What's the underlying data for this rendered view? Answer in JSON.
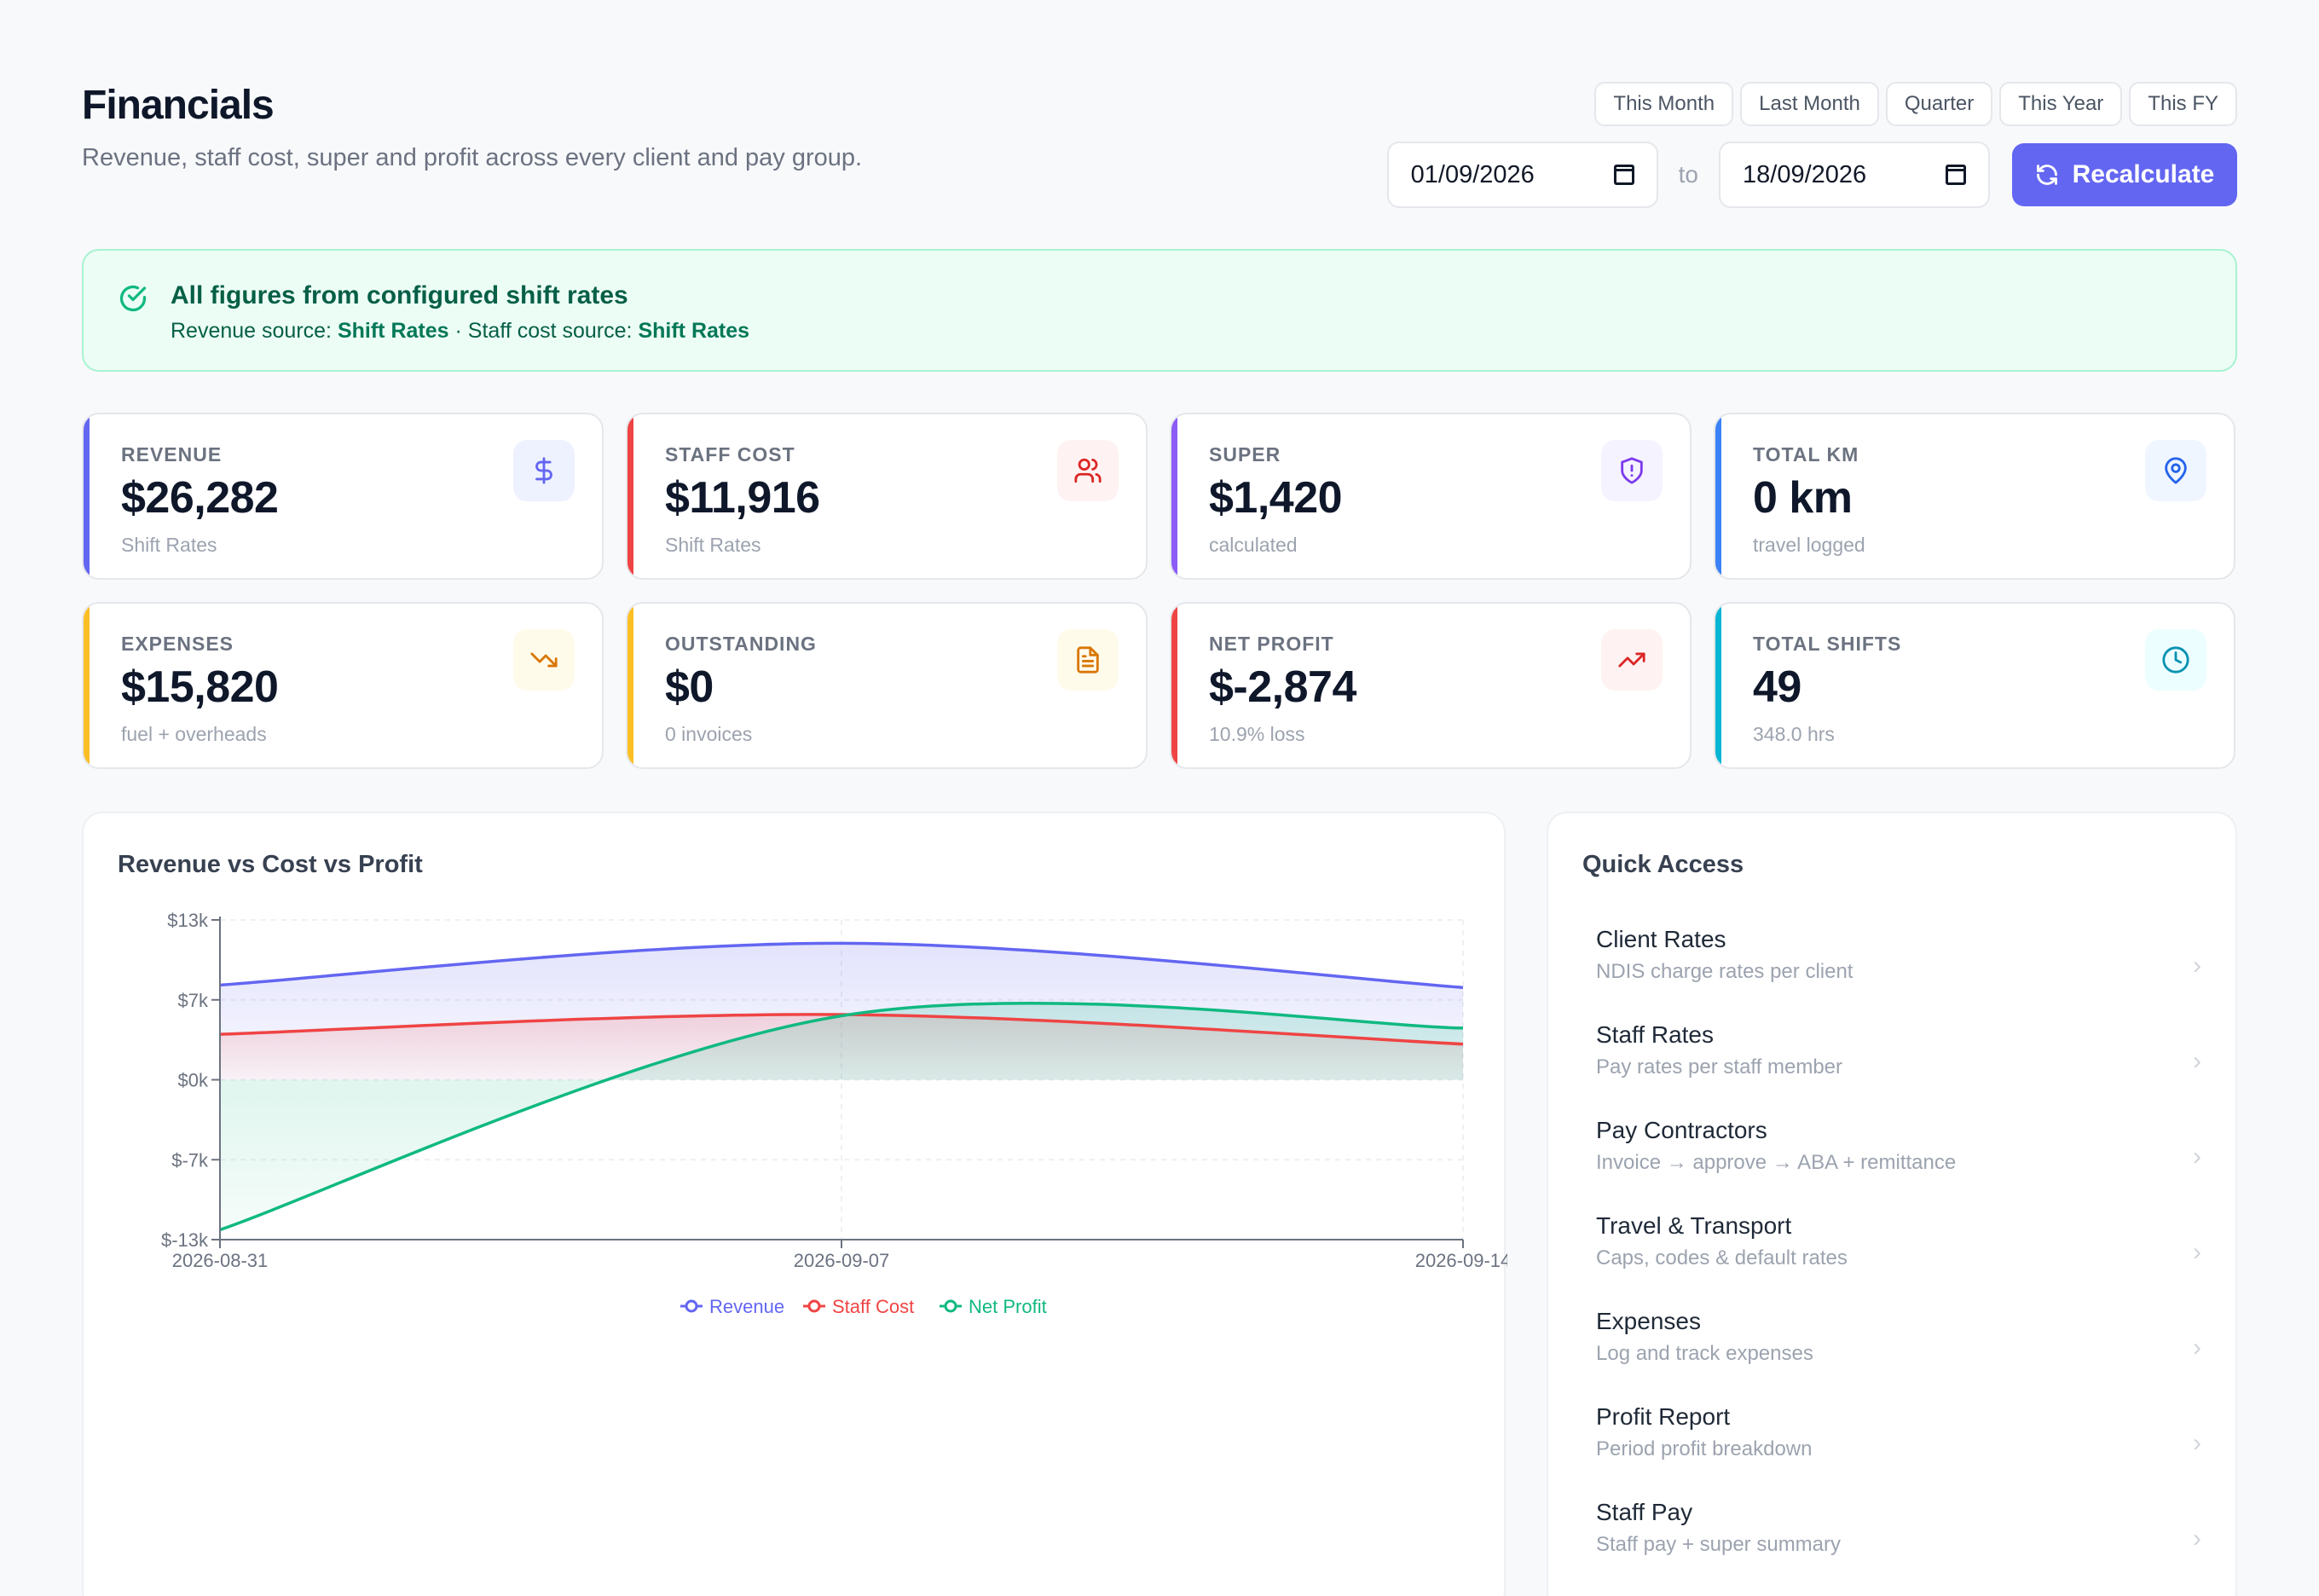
{
  "header": {
    "title": "Financials",
    "subtitle": "Revenue, staff cost, super and profit across every client and pay group."
  },
  "presets": [
    "This Month",
    "Last Month",
    "Quarter",
    "This Year",
    "This FY"
  ],
  "date_range": {
    "from": "01/09/2026",
    "to_label": "to",
    "to": "18/09/2026"
  },
  "recalculate_label": "Recalculate",
  "banner": {
    "title": "All figures from configured shift rates",
    "revenue_label": "Revenue source:",
    "revenue_source": "Shift Rates",
    "separator": "·",
    "cost_label": "Staff cost source:",
    "cost_source": "Shift Rates"
  },
  "stats": [
    {
      "label": "REVENUE",
      "value": "$26,282",
      "sub": "Shift Rates",
      "accent": "#6366f1",
      "icon": "dollar-icon",
      "icon_bg": "#eef2ff",
      "icon_color": "#6366f1"
    },
    {
      "label": "STAFF COST",
      "value": "$11,916",
      "sub": "Shift Rates",
      "accent": "#ef4444",
      "icon": "users-icon",
      "icon_bg": "#fef2f2",
      "icon_color": "#dc2626"
    },
    {
      "label": "SUPER",
      "value": "$1,420",
      "sub": "calculated",
      "accent": "#8b5cf6",
      "icon": "shield-icon",
      "icon_bg": "#f5f3ff",
      "icon_color": "#7c3aed"
    },
    {
      "label": "TOTAL KM",
      "value": "0 km",
      "sub": "travel logged",
      "accent": "#3b82f6",
      "icon": "map-pin-icon",
      "icon_bg": "#eff6ff",
      "icon_color": "#2563eb"
    },
    {
      "label": "EXPENSES",
      "value": "$15,820",
      "sub": "fuel + overheads",
      "accent": "#fbbf24",
      "icon": "trending-down-icon",
      "icon_bg": "#fffbeb",
      "icon_color": "#d97706"
    },
    {
      "label": "OUTSTANDING",
      "value": "$0",
      "sub": "0 invoices",
      "accent": "#fbbf24",
      "icon": "file-icon",
      "icon_bg": "#fffbeb",
      "icon_color": "#d97706"
    },
    {
      "label": "NET PROFIT",
      "value": "$-2,874",
      "sub": "10.9% loss",
      "accent": "#ef4444",
      "icon": "trending-up-icon",
      "icon_bg": "#fef2f2",
      "icon_color": "#dc2626"
    },
    {
      "label": "TOTAL SHIFTS",
      "value": "49",
      "sub": "348.0 hrs",
      "accent": "#06b6d4",
      "icon": "clock-icon",
      "icon_bg": "#ecfeff",
      "icon_color": "#0891b2"
    }
  ],
  "chart_title": "Revenue vs Cost vs Profit",
  "chart_data": {
    "type": "area",
    "title": "Revenue vs Cost vs Profit",
    "x": [
      "2026-08-31",
      "2026-09-07",
      "2026-09-14"
    ],
    "y_ticks": [
      "$13k",
      "$7k",
      "$0k",
      "$-7k",
      "$-13k"
    ],
    "y_tick_values": [
      13000,
      6500,
      0,
      -6500,
      -13000
    ],
    "ylim": [
      -13000,
      13000
    ],
    "grid": true,
    "legend_position": "bottom",
    "series": [
      {
        "name": "Revenue",
        "color": "#6366f1",
        "values": [
          7700,
          11100,
          7500
        ]
      },
      {
        "name": "Staff Cost",
        "color": "#ef4444",
        "values": [
          3700,
          5300,
          2900
        ]
      },
      {
        "name": "Net Profit",
        "color": "#10b981",
        "values": [
          -12200,
          5200,
          4200
        ]
      }
    ]
  },
  "quick_access": {
    "title": "Quick Access",
    "items": [
      {
        "title": "Client Rates",
        "desc": "NDIS charge rates per client"
      },
      {
        "title": "Staff Rates",
        "desc": "Pay rates per staff member"
      },
      {
        "title": "Pay Contractors",
        "desc": "Invoice → approve → ABA + remittance"
      },
      {
        "title": "Travel & Transport",
        "desc": "Caps, codes & default rates"
      },
      {
        "title": "Expenses",
        "desc": "Log and track expenses"
      },
      {
        "title": "Profit Report",
        "desc": "Period profit breakdown"
      },
      {
        "title": "Staff Pay",
        "desc": "Staff pay + super summary"
      }
    ]
  }
}
